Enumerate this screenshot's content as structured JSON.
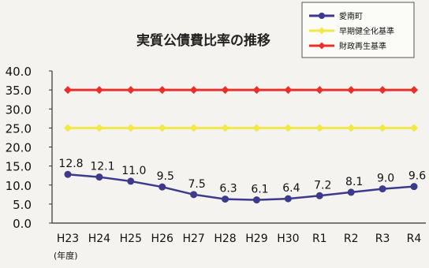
{
  "chart_data": {
    "type": "line",
    "title": "実質公債費比率の推移",
    "xlabel": "(年度)",
    "ylabel": "",
    "categories": [
      "H23",
      "H24",
      "H25",
      "H26",
      "H27",
      "H28",
      "H29",
      "H30",
      "R1",
      "R2",
      "R3",
      "R4"
    ],
    "ylim": [
      0,
      40
    ],
    "yticks": [
      "40.0",
      "35.0",
      "30.0",
      "25.0",
      "20.0",
      "15.0",
      "10.0",
      "5.0",
      "0.0"
    ],
    "grid": false,
    "legend_position": "top-right",
    "series": [
      {
        "name": "愛南町",
        "color": "#3b3a8c",
        "values": [
          12.8,
          12.1,
          11.0,
          9.5,
          7.5,
          6.3,
          6.1,
          6.4,
          7.2,
          8.1,
          9.0,
          9.6
        ],
        "labels": [
          "12.8",
          "12.1",
          "11.0",
          "9.5",
          "7.5",
          "6.3",
          "6.1",
          "6.4",
          "7.2",
          "8.1",
          "9.0",
          "9.6"
        ]
      },
      {
        "name": "早期健全化基準",
        "color": "#f2e84a",
        "values": [
          25,
          25,
          25,
          25,
          25,
          25,
          25,
          25,
          25,
          25,
          25,
          25
        ]
      },
      {
        "name": "財政再生基準",
        "color": "#e8302a",
        "values": [
          35,
          35,
          35,
          35,
          35,
          35,
          35,
          35,
          35,
          35,
          35,
          35
        ]
      }
    ]
  }
}
